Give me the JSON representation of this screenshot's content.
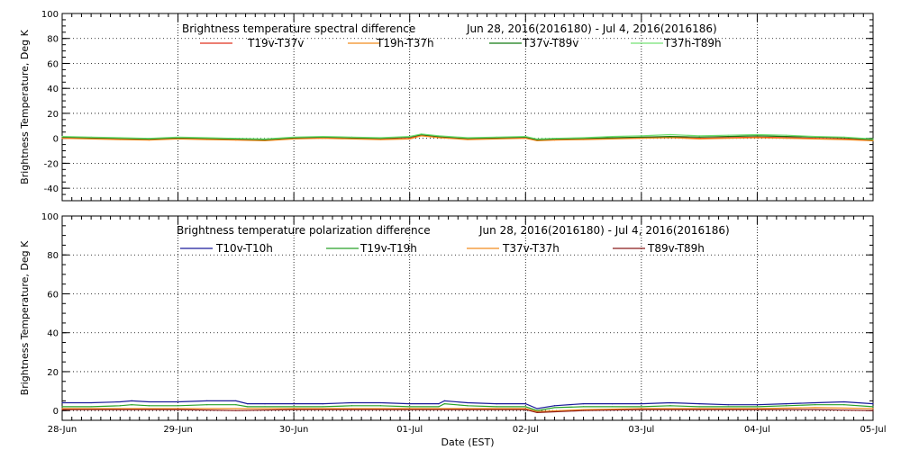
{
  "chart_data": [
    {
      "type": "line",
      "title": "Brightness temperature spectral difference",
      "date_range": "Jun 28, 2016(2016180) - Jul  4, 2016(2016186)",
      "ylabel": "Brightness Temperature, Deg K",
      "xlabel": "",
      "ylim": [
        -50,
        100
      ],
      "yticks": [
        -40,
        -20,
        0,
        20,
        40,
        60,
        80,
        100
      ],
      "xlim": [
        0,
        7
      ],
      "grid": "vertical dotted at day boundaries",
      "legend_position": "top",
      "series": [
        {
          "name": "T19v-T37v",
          "color": "#e0301e",
          "x": [
            0,
            0.25,
            0.5,
            0.75,
            1,
            1.25,
            1.5,
            1.75,
            2,
            2.25,
            2.5,
            2.75,
            3,
            3.1,
            3.25,
            3.5,
            3.75,
            4,
            4.1,
            4.25,
            4.5,
            4.75,
            5,
            5.25,
            5.5,
            5.75,
            6,
            6.25,
            6.5,
            6.75,
            7
          ],
          "values": [
            0.5,
            0,
            -0.5,
            -1,
            0,
            -0.5,
            -1,
            -1.5,
            0,
            0.5,
            0,
            -0.5,
            0,
            2.5,
            1,
            -0.5,
            0,
            0.5,
            -1.5,
            -1,
            -0.5,
            0,
            0.5,
            1,
            0,
            0.5,
            1,
            0.5,
            0,
            -0.5,
            -1.5
          ]
        },
        {
          "name": "T19h-T37h",
          "color": "#f28c1e",
          "x": [
            0,
            0.25,
            0.5,
            0.75,
            1,
            1.25,
            1.5,
            1.75,
            2,
            2.25,
            2.5,
            2.75,
            3,
            3.1,
            3.25,
            3.5,
            3.75,
            4,
            4.1,
            4.25,
            4.5,
            4.75,
            5,
            5.25,
            5.5,
            5.75,
            6,
            6.25,
            6.5,
            6.75,
            7
          ],
          "values": [
            0,
            -0.5,
            -1,
            -1.5,
            -0.5,
            -1,
            -1.5,
            -2,
            -0.5,
            0,
            -0.5,
            -1,
            -0.5,
            2,
            0.5,
            -1,
            -0.5,
            0,
            -2,
            -1.5,
            -1,
            -0.5,
            0,
            0.5,
            -0.5,
            0,
            0.5,
            0,
            -0.5,
            -1,
            -2
          ]
        },
        {
          "name": "T37v-T89v",
          "color": "#117a11",
          "x": [
            0,
            0.25,
            0.5,
            0.75,
            1,
            1.25,
            1.5,
            1.75,
            2,
            2.25,
            2.5,
            2.75,
            3,
            3.1,
            3.25,
            3.5,
            3.75,
            4,
            4.1,
            4.25,
            4.5,
            4.75,
            5,
            5.25,
            5.5,
            5.75,
            6,
            6.25,
            6.5,
            6.75,
            7
          ],
          "values": [
            1,
            0.5,
            0,
            -0.5,
            0.5,
            0,
            -0.5,
            -1,
            0.5,
            1,
            0.5,
            0,
            1,
            3,
            1.5,
            0,
            0.5,
            1,
            -1,
            -0.5,
            0,
            0.5,
            1,
            1.5,
            1,
            1.5,
            2,
            1.5,
            1,
            0.5,
            -1
          ]
        },
        {
          "name": "T37h-T89h",
          "color": "#74e274",
          "x": [
            0,
            0.25,
            0.5,
            0.75,
            1,
            1.25,
            1.5,
            1.75,
            2,
            2.25,
            2.5,
            2.75,
            3,
            3.1,
            3.25,
            3.5,
            3.75,
            4,
            4.1,
            4.25,
            4.5,
            4.75,
            5,
            5.25,
            5.5,
            5.75,
            6,
            6.25,
            6.5,
            6.75,
            7
          ],
          "values": [
            1.5,
            1,
            0.5,
            0,
            1,
            0.5,
            0,
            -0.5,
            1,
            1.5,
            1,
            0.5,
            1.5,
            3.5,
            2,
            0.5,
            1,
            1.5,
            -0.5,
            0,
            0.5,
            1.5,
            2,
            3,
            2,
            2.5,
            3,
            2.5,
            1.5,
            1,
            -0.5
          ]
        }
      ]
    },
    {
      "type": "line",
      "title": "Brightness temperature polarization difference",
      "date_range": "Jun 28, 2016(2016180) - Jul  4, 2016(2016186)",
      "ylabel": "Brightness Temperature, Deg K",
      "xlabel": "Date (EST)",
      "ylim": [
        -5,
        100
      ],
      "yticks": [
        0,
        20,
        40,
        60,
        80,
        100
      ],
      "xlim": [
        0,
        7
      ],
      "categories": [
        "28-Jun",
        "29-Jun",
        "30-Jun",
        "01-Jul",
        "02-Jul",
        "03-Jul",
        "04-Jul",
        "05-Jul"
      ],
      "grid": "vertical dotted at day boundaries",
      "legend_position": "top",
      "series": [
        {
          "name": "T10v-T10h",
          "color": "#1a1a9a",
          "x": [
            0,
            0.25,
            0.5,
            0.6,
            0.75,
            1,
            1.25,
            1.5,
            1.6,
            1.75,
            2,
            2.25,
            2.5,
            2.75,
            3,
            3.25,
            3.3,
            3.5,
            3.75,
            4,
            4.1,
            4.25,
            4.5,
            4.75,
            5,
            5.25,
            5.5,
            5.75,
            6,
            6.25,
            6.5,
            6.75,
            7
          ],
          "values": [
            4,
            4,
            4.5,
            5,
            4.5,
            4.5,
            5,
            5,
            3.5,
            3.5,
            3.5,
            3.5,
            4,
            4,
            3.5,
            3.5,
            5,
            4,
            3.5,
            3.5,
            1,
            2.5,
            3.5,
            3.5,
            3.5,
            4,
            3.5,
            3,
            3,
            3.5,
            4,
            4.5,
            3.5
          ]
        },
        {
          "name": "T19v-T19h",
          "color": "#27a127",
          "x": [
            0,
            0.25,
            0.5,
            0.6,
            0.75,
            1,
            1.25,
            1.5,
            1.6,
            1.75,
            2,
            2.25,
            2.5,
            2.75,
            3,
            3.25,
            3.3,
            3.5,
            3.75,
            4,
            4.1,
            4.25,
            4.5,
            4.75,
            5,
            5.25,
            5.5,
            5.75,
            6,
            6.25,
            6.5,
            6.75,
            7
          ],
          "values": [
            2,
            2,
            2.5,
            3,
            2.5,
            2.5,
            3,
            3,
            2,
            2,
            2,
            2,
            2.5,
            2.5,
            2,
            2,
            3.5,
            2.5,
            2,
            2,
            0,
            1.5,
            2,
            2,
            2,
            2.5,
            2,
            2,
            2,
            2.5,
            3,
            3,
            2
          ]
        },
        {
          "name": "T37v-T37h",
          "color": "#f28c1e",
          "x": [
            0,
            0.5,
            1,
            1.5,
            2,
            2.5,
            3,
            3.5,
            4,
            4.1,
            4.5,
            5,
            5.5,
            6,
            6.5,
            7
          ],
          "values": [
            1,
            1,
            1,
            1,
            1,
            1,
            1,
            1,
            1,
            -0.5,
            0.5,
            1,
            1,
            1,
            1.5,
            1
          ]
        },
        {
          "name": "T89v-T89h",
          "color": "#8b1a1a",
          "x": [
            0,
            0.5,
            1,
            1.5,
            2,
            2.5,
            3,
            3.5,
            4,
            4.1,
            4.5,
            5,
            5.5,
            6,
            6.5,
            7
          ],
          "values": [
            0.5,
            0.5,
            0.5,
            0,
            0.5,
            0.5,
            0.5,
            0.5,
            0.5,
            -1,
            0,
            0.5,
            0.5,
            0.5,
            0.5,
            0
          ]
        }
      ]
    }
  ]
}
